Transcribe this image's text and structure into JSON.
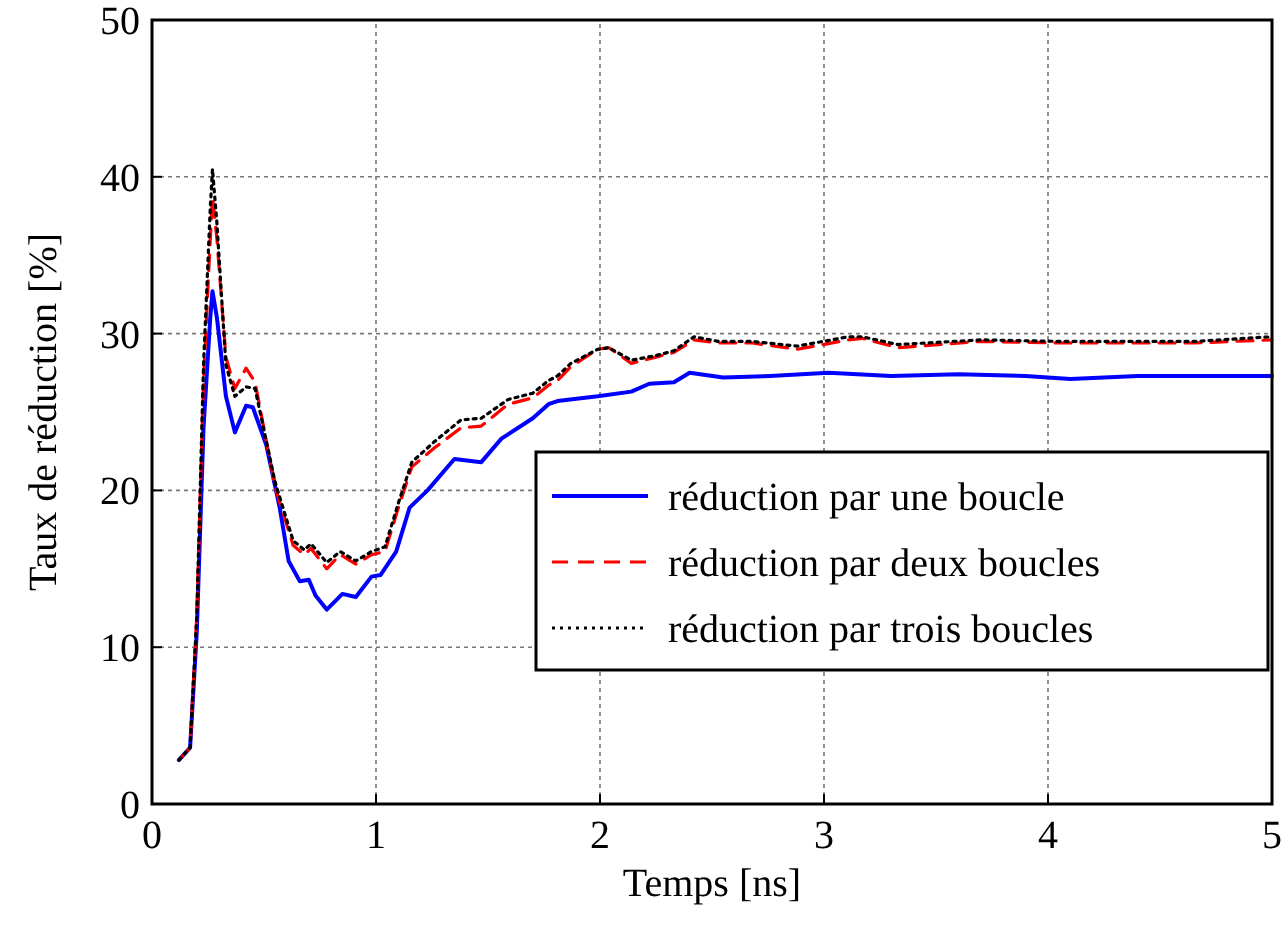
{
  "chart_data": {
    "type": "line",
    "xlabel": "Temps [ns]",
    "ylabel": "Taux de réduction [%]",
    "xlim": [
      0,
      5
    ],
    "ylim": [
      0,
      50
    ],
    "xticks": [
      0,
      1,
      2,
      3,
      4,
      5
    ],
    "yticks": [
      0,
      10,
      20,
      30,
      40,
      50
    ],
    "grid": true,
    "legend": "right",
    "series": [
      {
        "name": "réduction par une boucle",
        "color": "#0000ff",
        "line_style": "solid",
        "x": [
          0.12,
          0.17,
          0.2,
          0.23,
          0.26,
          0.27,
          0.29,
          0.33,
          0.37,
          0.42,
          0.45,
          0.51,
          0.57,
          0.61,
          0.66,
          0.7,
          0.73,
          0.78,
          0.85,
          0.91,
          0.98,
          1.02,
          1.09,
          1.15,
          1.23,
          1.35,
          1.47,
          1.56,
          1.7,
          1.77,
          1.81,
          1.99,
          2.14,
          2.22,
          2.33,
          2.4,
          2.55,
          2.76,
          3.02,
          3.3,
          3.6,
          3.9,
          4.1,
          4.4,
          4.7,
          5.0
        ],
        "values": [
          2.8,
          3.6,
          11,
          24,
          31,
          32.7,
          31,
          26,
          23.7,
          25.4,
          25.3,
          22.9,
          18.9,
          15.5,
          14.2,
          14.3,
          13.3,
          12.4,
          13.4,
          13.2,
          14.5,
          14.6,
          16.1,
          18.9,
          20,
          22,
          21.8,
          23.3,
          24.6,
          25.5,
          25.7,
          26,
          26.3,
          26.8,
          26.9,
          27.5,
          27.2,
          27.3,
          27.5,
          27.3,
          27.4,
          27.3,
          27.1,
          27.3,
          27.3,
          27.3
        ]
      },
      {
        "name": "réduction par deux boucles",
        "color": "#ff0000",
        "line_style": "dashed",
        "x": [
          0.12,
          0.17,
          0.2,
          0.23,
          0.26,
          0.27,
          0.29,
          0.33,
          0.37,
          0.42,
          0.46,
          0.55,
          0.63,
          0.68,
          0.71,
          0.78,
          0.84,
          0.91,
          0.98,
          1.04,
          1.1,
          1.16,
          1.26,
          1.38,
          1.47,
          1.59,
          1.7,
          1.77,
          1.81,
          1.87,
          1.99,
          2.04,
          2.14,
          2.25,
          2.33,
          2.42,
          2.53,
          2.68,
          2.88,
          3.11,
          3.17,
          3.33,
          3.7,
          4.06,
          4.65,
          5.0
        ],
        "values": [
          2.8,
          3.6,
          12,
          27,
          36,
          38.7,
          36,
          28.5,
          26.5,
          27.8,
          26.9,
          20.2,
          16.5,
          15.9,
          16.3,
          15,
          15.9,
          15.3,
          15.9,
          16.1,
          18.9,
          21.5,
          22.7,
          24,
          24.1,
          25.5,
          25.9,
          26.7,
          27,
          27.9,
          29,
          29.1,
          28.1,
          28.5,
          28.8,
          29.6,
          29.4,
          29.4,
          29,
          29.6,
          29.7,
          29.1,
          29.5,
          29.4,
          29.4,
          29.6
        ]
      },
      {
        "name": "réduction par trois boucles",
        "color": "#000000",
        "line_style": "dotted",
        "x": [
          0.12,
          0.17,
          0.2,
          0.23,
          0.26,
          0.27,
          0.29,
          0.33,
          0.37,
          0.42,
          0.46,
          0.55,
          0.63,
          0.68,
          0.71,
          0.78,
          0.84,
          0.91,
          0.98,
          1.04,
          1.1,
          1.16,
          1.26,
          1.38,
          1.47,
          1.59,
          1.7,
          1.77,
          1.81,
          1.87,
          1.99,
          2.04,
          2.14,
          2.25,
          2.33,
          2.42,
          2.53,
          2.68,
          2.88,
          3.11,
          3.17,
          3.33,
          3.7,
          4.06,
          4.65,
          5.0
        ],
        "values": [
          2.8,
          3.6,
          12,
          28,
          38,
          40.5,
          37,
          28,
          26,
          26.6,
          26.5,
          20.5,
          16.8,
          16.2,
          16.6,
          15.4,
          16.1,
          15.5,
          16.1,
          16.4,
          19.2,
          21.8,
          23.1,
          24.5,
          24.6,
          25.8,
          26.2,
          27,
          27.3,
          28.1,
          29,
          29.1,
          28.3,
          28.6,
          28.9,
          29.8,
          29.5,
          29.5,
          29.2,
          29.8,
          29.8,
          29.3,
          29.6,
          29.5,
          29.5,
          29.8
        ]
      }
    ]
  }
}
